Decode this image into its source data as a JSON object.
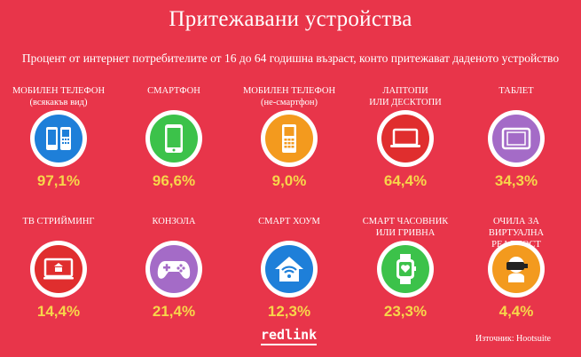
{
  "title": "Притежавани устройства",
  "subtitle": "Процент от интернет потребителите от 16 до 64 годишна възраст, конто притежават даденото устройство",
  "colors": {
    "background": "#e8354a",
    "value": "#f7d64a",
    "blue": "#1e7fd9",
    "green": "#3cc24a",
    "orange": "#f39a1e",
    "red": "#e02e2e",
    "purple": "#a46bc7"
  },
  "devices": [
    {
      "label_1": "МОБИЛЕН ТЕЛЕФОН",
      "label_2": "(всякакъв вид)",
      "value": "97,1%",
      "icon": "mobile-phones-icon",
      "color": "#1e7fd9"
    },
    {
      "label_1": "СМАРТФОН",
      "label_2": "",
      "value": "96,6%",
      "icon": "smartphone-icon",
      "color": "#3cc24a"
    },
    {
      "label_1": "МОБИЛЕН ТЕЛЕФОН",
      "label_2": "(не-смартфон)",
      "value": "9,0%",
      "icon": "feature-phone-icon",
      "color": "#f39a1e"
    },
    {
      "label_1": "ЛАПТОПИ",
      "label_2": "ИЛИ ДЕСКТОПИ",
      "value": "64,4%",
      "icon": "laptop-icon",
      "color": "#e02e2e"
    },
    {
      "label_1": "ТАБЛЕТ",
      "label_2": "",
      "value": "34,3%",
      "icon": "tablet-icon",
      "color": "#a46bc7"
    },
    {
      "label_1": "ТВ СТРИЙМИНГ",
      "label_2": "",
      "value": "14,4%",
      "icon": "tv-streaming-icon",
      "color": "#e02e2e"
    },
    {
      "label_1": "КОНЗОЛА",
      "label_2": "",
      "value": "21,4%",
      "icon": "gamepad-icon",
      "color": "#a46bc7"
    },
    {
      "label_1": "СМАРТ ХОУМ",
      "label_2": "",
      "value": "12,3%",
      "icon": "smart-home-icon",
      "color": "#1e7fd9"
    },
    {
      "label_1": "СМАРТ ЧАСОВНИК",
      "label_2": "ИЛИ ГРИВНА",
      "value": "23,3%",
      "icon": "smartwatch-icon",
      "color": "#3cc24a"
    },
    {
      "label_1": "ОЧИЛА ЗА ВИРТУАЛНА",
      "label_2": "РЕАЛНОСТ",
      "value": "4,4%",
      "icon": "vr-headset-icon",
      "color": "#f39a1e"
    }
  ],
  "footer": {
    "logo": "redlink",
    "source": "Източник: Hootsuite"
  }
}
